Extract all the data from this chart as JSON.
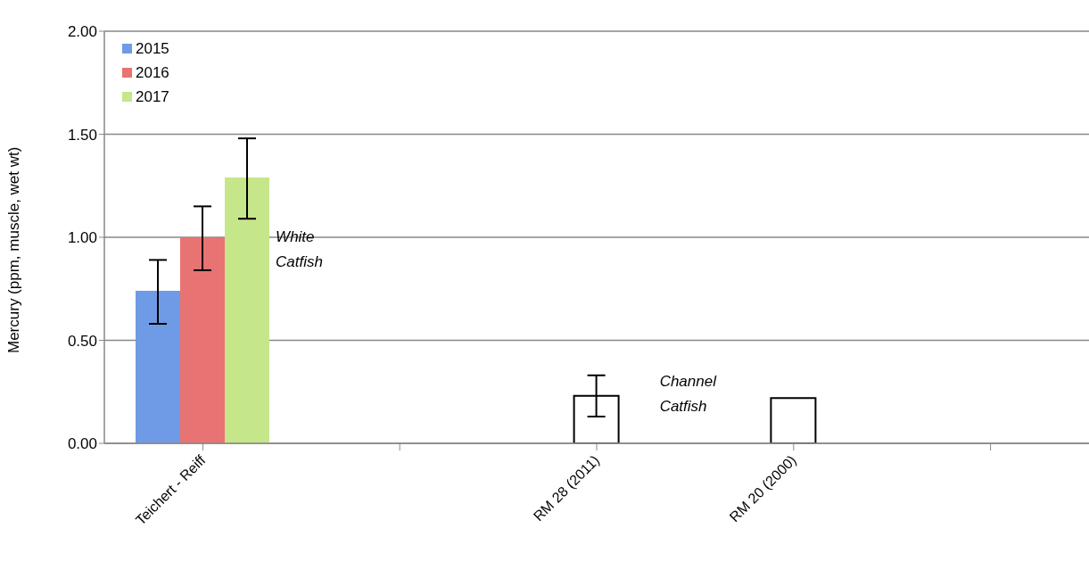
{
  "chart_data": {
    "type": "bar",
    "ylabel": "Mercury (ppm, muscle, wet wt)",
    "categories": [
      "Teichert - Reiff",
      null,
      "RM 28 (2011)",
      "RM 20 (2000)",
      null
    ],
    "series": [
      {
        "name": "2015",
        "color": "#6f9ae6",
        "values": [
          0.74,
          null,
          null,
          null,
          null
        ],
        "errors": [
          [
            0.58,
            0.89
          ],
          null,
          null,
          null,
          null
        ]
      },
      {
        "name": "2016",
        "color": "#e87373",
        "values": [
          1.0,
          null,
          null,
          null,
          null
        ],
        "errors": [
          [
            0.84,
            1.15
          ],
          null,
          null,
          null,
          null
        ]
      },
      {
        "name": "2017",
        "color": "#c6e68a",
        "values": [
          1.29,
          null,
          null,
          null,
          null
        ],
        "errors": [
          [
            1.09,
            1.48
          ],
          null,
          null,
          null,
          null
        ]
      },
      {
        "color": "#ffffff",
        "values": [
          null,
          null,
          0.23,
          0.22,
          null
        ],
        "errors": [
          null,
          null,
          [
            0.13,
            0.33
          ],
          null,
          null
        ]
      }
    ],
    "ylim": [
      0,
      2
    ],
    "yticks": [
      {
        "value": 0,
        "label": "0.00"
      },
      {
        "value": 0.5,
        "label": "0.50"
      },
      {
        "value": 1,
        "label": "1.00"
      },
      {
        "value": 1.5,
        "label": "1.50"
      },
      {
        "value": 2,
        "label": "2.00"
      }
    ],
    "grid": "y",
    "legend": "top left",
    "annotations": [
      "White Catfish",
      "Channel Catfish"
    ]
  }
}
